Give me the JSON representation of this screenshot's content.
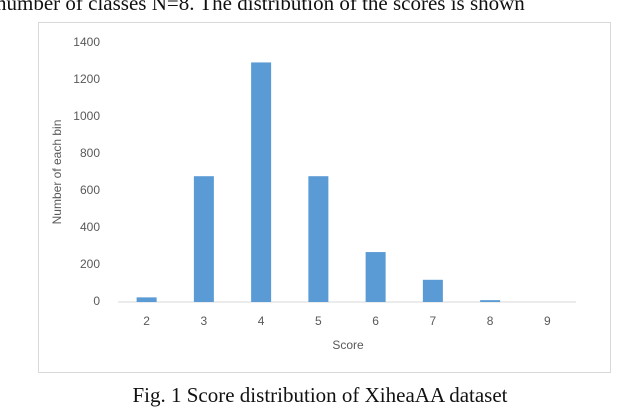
{
  "paper": {
    "text_above": "number of classes N=8. The distribution of the scores is shown",
    "caption": "Fig. 1 Score distribution of XiheaAA dataset"
  },
  "chart_data": {
    "type": "bar",
    "xlabel": "Score",
    "ylabel": "Number of each bin",
    "categories": [
      "2",
      "3",
      "4",
      "5",
      "6",
      "7",
      "8",
      "9"
    ],
    "values": [
      25,
      680,
      1295,
      680,
      270,
      120,
      10,
      0
    ],
    "color": "#5b9bd5",
    "ylim": [
      0,
      1400
    ],
    "yticks": [
      0,
      200,
      400,
      600,
      800,
      1000,
      1200,
      1400
    ],
    "grid": false
  }
}
